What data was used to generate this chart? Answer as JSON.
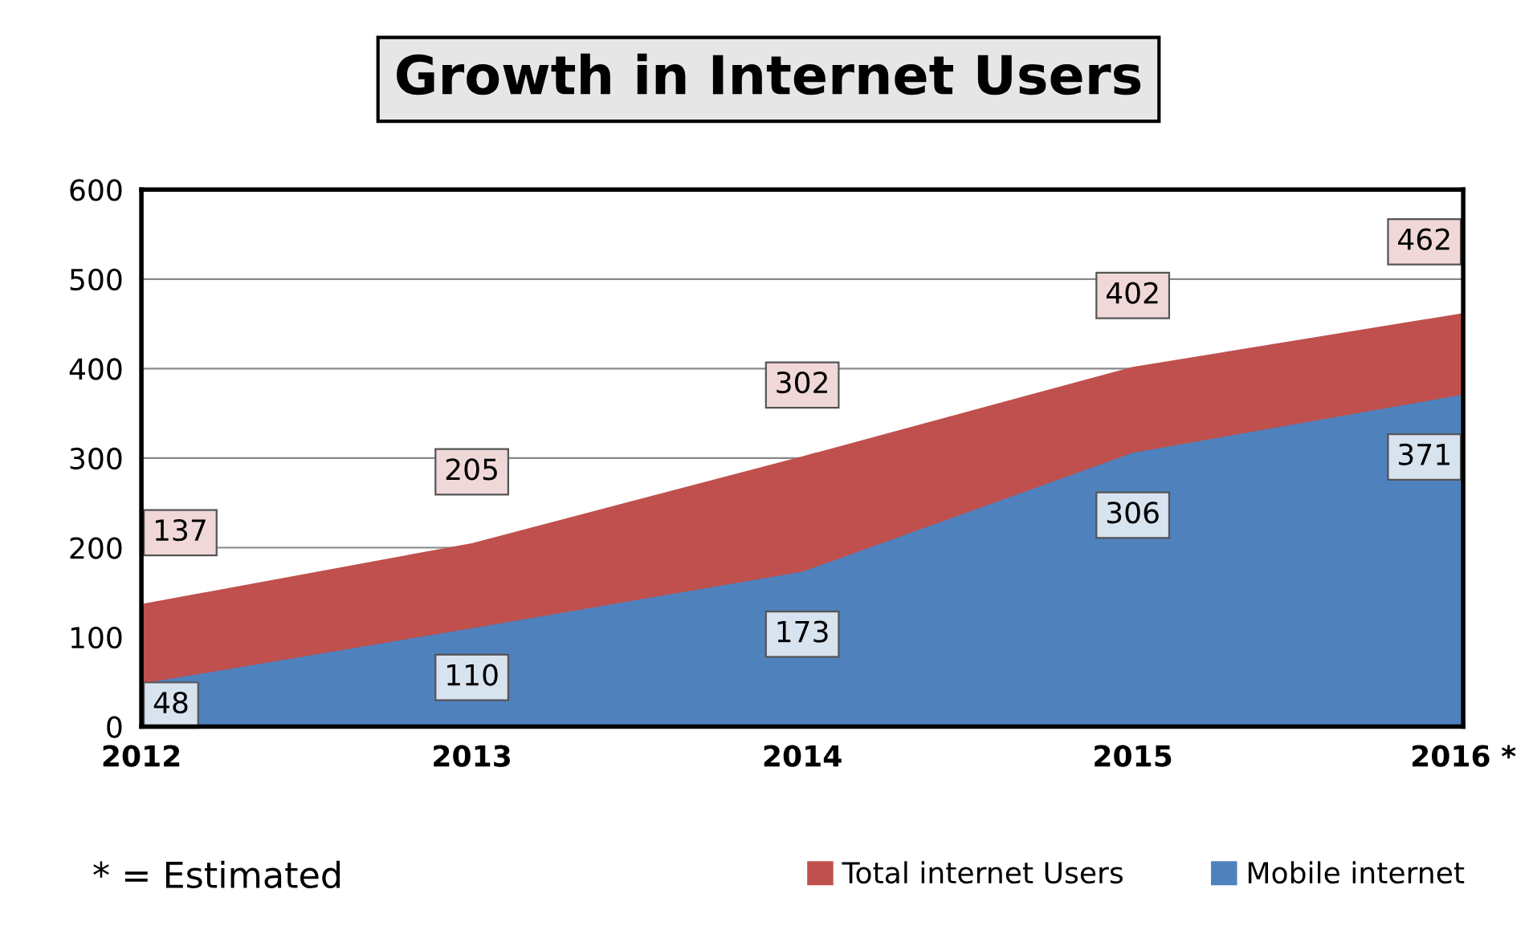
{
  "chart_data": {
    "type": "area",
    "title": "Growth in Internet Users",
    "categories": [
      "2012",
      "2013",
      "2014",
      "2015",
      "2016 *"
    ],
    "series": [
      {
        "name": "Total internet Users",
        "color": "#c0504d",
        "values": [
          137,
          205,
          302,
          402,
          462
        ]
      },
      {
        "name": "Mobile internet",
        "color": "#4f81bd",
        "values": [
          48,
          110,
          173,
          306,
          371
        ]
      }
    ],
    "ylim": [
      0,
      600
    ],
    "yticks": [
      0,
      100,
      200,
      300,
      400,
      500,
      600
    ],
    "grid": "y",
    "legend": "bottom right",
    "data_labels": true,
    "annotations": [
      "* = Estimated"
    ]
  }
}
